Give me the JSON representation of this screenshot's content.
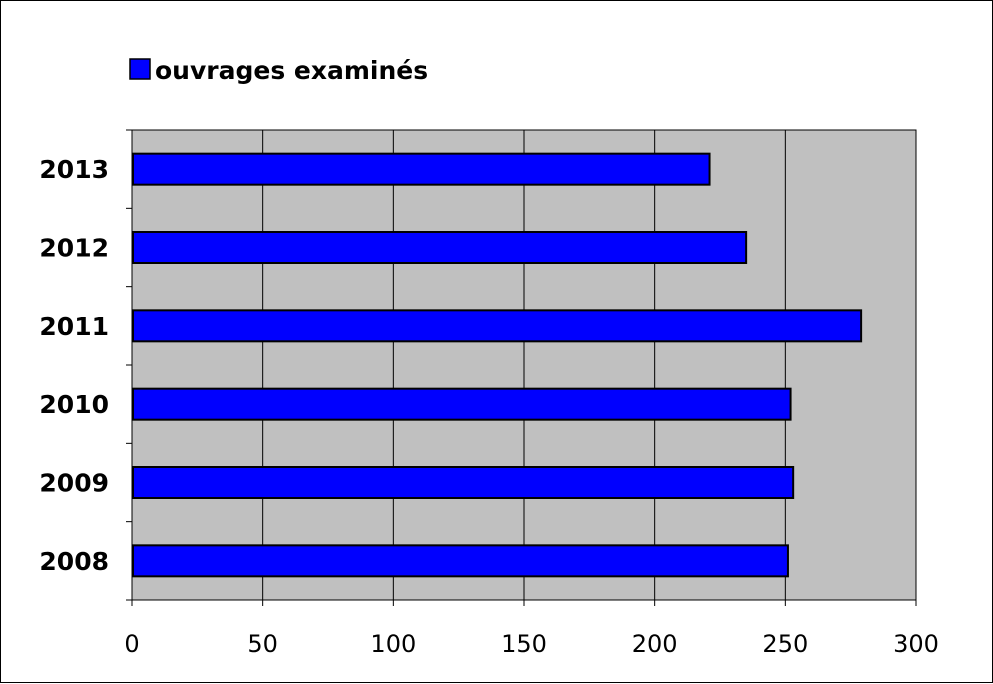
{
  "chart_data": {
    "type": "bar",
    "orientation": "horizontal",
    "categories": [
      "2013",
      "2012",
      "2011",
      "2010",
      "2009",
      "2008"
    ],
    "series": [
      {
        "name": "ouvrages examinés",
        "values": [
          221,
          235,
          279,
          252,
          253,
          251
        ],
        "color": "#0000ff"
      }
    ],
    "xlim": [
      0,
      300
    ],
    "xticks": [
      "0",
      "50",
      "100",
      "150",
      "200",
      "250",
      "300"
    ],
    "grid": "vertical",
    "legend_position": "top-left",
    "plot_background": "#c0c0c0",
    "title": "",
    "xlabel": "",
    "ylabel": ""
  }
}
